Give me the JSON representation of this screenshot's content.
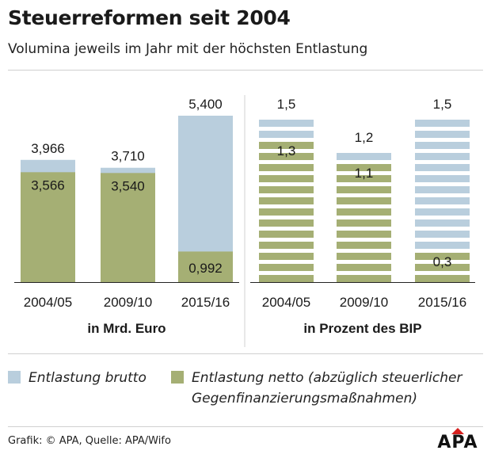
{
  "header": {
    "title": "Steuerreformen seit 2004",
    "subtitle": "Volumina jeweils im Jahr mit der höchsten Entlastung"
  },
  "colors": {
    "brutto": "#b9cedd",
    "netto": "#a5af74",
    "text": "#1a1a1a",
    "logo_red": "#d6201e"
  },
  "chart_data": [
    {
      "type": "bar",
      "title": "in Mrd. Euro",
      "categories": [
        "2004/05",
        "2009/10",
        "2015/16"
      ],
      "series": [
        {
          "name": "Entlastung brutto",
          "values": [
            3.966,
            3.71,
            5.4
          ],
          "labels": [
            "3,966",
            "3,710",
            "5,400"
          ]
        },
        {
          "name": "Entlastung netto (abzüglich steuerlicher Gegenfinanzierungsmaßnahmen)",
          "values": [
            3.566,
            3.54,
            0.992
          ],
          "labels": [
            "3,566",
            "3,540",
            "0,992"
          ]
        }
      ],
      "ylim": [
        0,
        5.4
      ],
      "grid": false,
      "striped": false
    },
    {
      "type": "bar",
      "title": "in Prozent des BIP",
      "categories": [
        "2004/05",
        "2009/10",
        "2015/16"
      ],
      "series": [
        {
          "name": "Entlastung brutto",
          "values": [
            1.5,
            1.2,
            1.5
          ],
          "labels": [
            "1,5",
            "1,2",
            "1,5"
          ]
        },
        {
          "name": "Entlastung netto (abzüglich steuerlicher Gegenfinanzierungsmaßnahmen)",
          "values": [
            1.3,
            1.1,
            0.3
          ],
          "labels": [
            "1,3",
            "1,1",
            "0,3"
          ]
        }
      ],
      "ylim": [
        0,
        1.5
      ],
      "grid": false,
      "striped": true
    }
  ],
  "legend": {
    "brutto_label": "Entlastung brutto",
    "netto_label_line1": "Entlastung netto (abzüglich steuerlicher",
    "netto_label_line2": "Gegenfinanzierungsmaßnahmen)"
  },
  "footer": {
    "source": "Grafik: © APA, Quelle: APA/Wifo",
    "logo_text": "APA"
  }
}
